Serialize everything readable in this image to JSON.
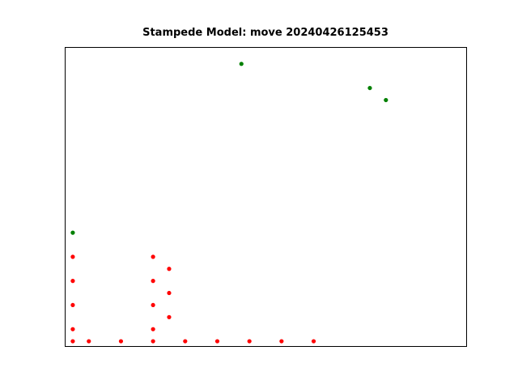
{
  "chart_data": {
    "type": "scatter",
    "title": "Stampede Model: move 20240426125453",
    "xlabel": "",
    "ylabel": "",
    "axes_visible": false,
    "grid": false,
    "xlim": [
      -0.5,
      24.5
    ],
    "ylim": [
      -0.4,
      24.4
    ],
    "series": [
      {
        "color": "#ff0000",
        "points": [
          [
            0,
            0
          ],
          [
            1,
            0
          ],
          [
            3,
            0
          ],
          [
            5,
            0
          ],
          [
            7,
            0
          ],
          [
            9,
            0
          ],
          [
            11,
            0
          ],
          [
            13,
            0
          ],
          [
            15,
            0
          ],
          [
            0,
            1
          ],
          [
            5,
            1
          ],
          [
            0,
            3
          ],
          [
            5,
            3
          ],
          [
            0,
            5
          ],
          [
            5,
            5
          ],
          [
            0,
            7
          ],
          [
            5,
            7
          ],
          [
            6,
            2
          ],
          [
            6,
            4
          ],
          [
            6,
            6
          ]
        ]
      },
      {
        "color": "#008000",
        "points": [
          [
            0,
            9
          ],
          [
            10.5,
            23
          ],
          [
            18.5,
            21
          ],
          [
            19.5,
            20
          ]
        ]
      }
    ]
  }
}
